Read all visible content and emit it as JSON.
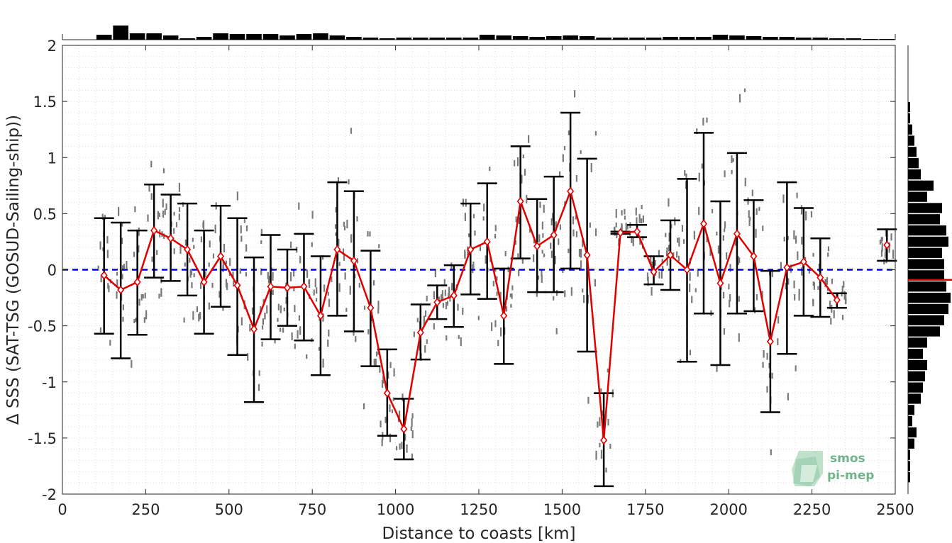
{
  "chart_data": {
    "type": "line",
    "xlabel": "Distance to coasts [km]",
    "ylabel": "Δ SSS (SAT-TSG (GOSUD-Sailing-ship))",
    "xlim": [
      0,
      2500
    ],
    "ylim": [
      -2,
      2
    ],
    "xticks": [
      0,
      250,
      500,
      750,
      1000,
      1250,
      1500,
      1750,
      2000,
      2250,
      2500
    ],
    "yticks": [
      -2,
      -1.5,
      -1,
      -0.5,
      0,
      0.5,
      1,
      1.5,
      2
    ],
    "grid": true,
    "zero_line": 0,
    "colors": {
      "mean_line": "#e00000",
      "error_bars": "#000000",
      "zero_line": "#0000e0",
      "scatter": "#7a7a7a",
      "histogram": "#000000"
    },
    "series": [
      {
        "x": [
          125,
          175,
          225,
          275,
          325,
          375,
          425,
          475,
          525,
          575,
          625,
          675,
          725,
          775,
          825,
          875,
          925,
          975,
          1025,
          1075,
          1125,
          1175,
          1225,
          1275,
          1325,
          1375,
          1425,
          1475,
          1525,
          1575,
          1625,
          1675,
          1725,
          1775,
          1825,
          1875,
          1925,
          1975,
          2025,
          2075,
          2125,
          2175,
          2225,
          2275,
          2325
        ],
        "mean": [
          -0.05,
          -0.18,
          -0.11,
          0.35,
          0.28,
          0.18,
          -0.11,
          0.12,
          -0.14,
          -0.53,
          -0.15,
          -0.16,
          -0.15,
          -0.41,
          0.18,
          0.08,
          -0.34,
          -1.1,
          -1.42,
          -0.56,
          -0.29,
          -0.23,
          0.18,
          0.25,
          -0.41,
          0.61,
          0.21,
          0.31,
          0.7,
          0.13,
          -1.52,
          0.33,
          0.34,
          -0.02,
          0.13,
          0.0,
          0.41,
          -0.12,
          0.32,
          0.12,
          -0.64,
          0.02,
          0.07,
          -0.07,
          -0.27
        ],
        "lower": [
          -0.57,
          -0.79,
          -0.58,
          -0.07,
          -0.1,
          -0.23,
          -0.57,
          -0.33,
          -0.76,
          -1.18,
          -0.62,
          -0.5,
          -0.63,
          -0.94,
          -0.41,
          -0.55,
          -0.86,
          -1.48,
          -1.69,
          -0.8,
          -0.44,
          -0.51,
          -0.22,
          -0.26,
          -0.84,
          0.1,
          -0.2,
          -0.2,
          0.01,
          -0.73,
          -1.93,
          0.32,
          0.29,
          -0.13,
          -0.18,
          -0.82,
          -0.39,
          -0.85,
          -0.39,
          -0.37,
          -1.27,
          -0.75,
          -0.41,
          -0.42,
          -0.34
        ],
        "upper": [
          0.46,
          0.42,
          0.35,
          0.76,
          0.67,
          0.59,
          0.35,
          0.57,
          0.46,
          0.11,
          0.31,
          0.18,
          0.32,
          0.12,
          0.78,
          0.7,
          0.17,
          -0.71,
          -1.15,
          -0.31,
          -0.14,
          0.04,
          0.59,
          0.77,
          0.01,
          1.1,
          0.63,
          0.83,
          1.4,
          0.99,
          -1.1,
          0.34,
          0.4,
          0.12,
          0.44,
          0.81,
          1.22,
          0.61,
          1.04,
          0.62,
          -0.01,
          0.78,
          0.55,
          0.28,
          -0.21
        ]
      },
      {
        "x": [
          2475
        ],
        "mean": [
          0.22
        ],
        "lower": [
          0.08
        ],
        "upper": [
          0.36
        ]
      }
    ],
    "top_histogram": {
      "bin_centers": [
        125,
        175,
        225,
        275,
        325,
        375,
        425,
        475,
        525,
        575,
        625,
        675,
        725,
        775,
        825,
        875,
        925,
        975,
        1025,
        1075,
        1125,
        1175,
        1225,
        1275,
        1325,
        1375,
        1425,
        1475,
        1525,
        1575,
        1625,
        1675,
        1725,
        1775,
        1825,
        1875,
        1925,
        1975,
        2025,
        2075,
        2125,
        2175,
        2225,
        2275,
        2325,
        2375,
        2425,
        2475
      ],
      "counts": [
        0.35,
        1.0,
        0.45,
        0.45,
        0.3,
        0.1,
        0.2,
        0.45,
        0.4,
        0.4,
        0.4,
        0.3,
        0.4,
        0.45,
        0.3,
        0.2,
        0.15,
        0.1,
        0.15,
        0.15,
        0.15,
        0.15,
        0.15,
        0.35,
        0.3,
        0.25,
        0.2,
        0.25,
        0.3,
        0.25,
        0.15,
        0.15,
        0.15,
        0.15,
        0.2,
        0.2,
        0.2,
        0.35,
        0.3,
        0.25,
        0.2,
        0.2,
        0.15,
        0.15,
        0.1,
        0.1,
        0.05,
        0.05
      ]
    },
    "right_histogram": {
      "bin_centers": [
        -1.85,
        -1.75,
        -1.65,
        -1.55,
        -1.45,
        -1.35,
        -1.25,
        -1.15,
        -1.05,
        -0.95,
        -0.85,
        -0.75,
        -0.65,
        -0.55,
        -0.45,
        -0.35,
        -0.25,
        -0.15,
        -0.05,
        0.05,
        0.15,
        0.25,
        0.35,
        0.45,
        0.55,
        0.65,
        0.75,
        0.85,
        0.95,
        1.05,
        1.15,
        1.25,
        1.35,
        1.45
      ],
      "counts": [
        0.05,
        0.05,
        0.05,
        0.15,
        0.2,
        0.1,
        0.15,
        0.3,
        0.35,
        0.4,
        0.45,
        0.35,
        0.45,
        0.75,
        0.85,
        0.95,
        1.0,
        0.9,
        0.85,
        0.85,
        0.8,
        0.95,
        0.9,
        0.75,
        0.8,
        0.45,
        0.6,
        0.3,
        0.25,
        0.2,
        0.15,
        0.1,
        0.05,
        0.05
      ],
      "median": -0.09
    }
  },
  "logo": {
    "line1": "smos",
    "line2": "pi-mep"
  }
}
